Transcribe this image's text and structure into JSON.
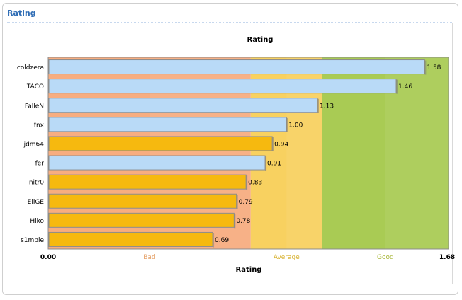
{
  "panel": {
    "title": "Rating"
  },
  "chart_data": {
    "type": "bar",
    "orientation": "horizontal",
    "title": "Rating",
    "xlabel": "Rating",
    "ylabel": "",
    "xlim": [
      0.0,
      1.68
    ],
    "x_tick_labels": [
      "0.00",
      "1.68"
    ],
    "categories": [
      "coldzera",
      "TACO",
      "FalleN",
      "fnx",
      "jdm64",
      "fer",
      "nitr0",
      "EliGE",
      "Hiko",
      "s1mple"
    ],
    "values": [
      1.58,
      1.46,
      1.13,
      1.0,
      0.94,
      0.91,
      0.83,
      0.79,
      0.78,
      0.69
    ],
    "value_labels": [
      "1.58",
      "1.46",
      "1.13",
      "1.00",
      "0.94",
      "0.91",
      "0.83",
      "0.79",
      "0.78",
      "0.69"
    ],
    "bar_group": [
      "blue",
      "blue",
      "blue",
      "blue",
      "orange",
      "blue",
      "orange",
      "orange",
      "orange",
      "orange"
    ],
    "bands": [
      {
        "label": "Bad",
        "from": 0.0,
        "to": 0.85,
        "color": "#f7ad80"
      },
      {
        "label": "Average",
        "from": 0.85,
        "to": 1.15,
        "color": "#f8d160"
      },
      {
        "label": "Good",
        "from": 1.15,
        "to": 1.68,
        "color": "#a9cb54"
      }
    ],
    "colors": {
      "blue": "#b9daf7",
      "orange": "#f6b90f",
      "bad": "#f7ad80",
      "average": "#f8d160",
      "good": "#a9cb54",
      "bad_label": "#e5a066",
      "average_label": "#d8b230",
      "good_label": "#a7b636"
    }
  }
}
